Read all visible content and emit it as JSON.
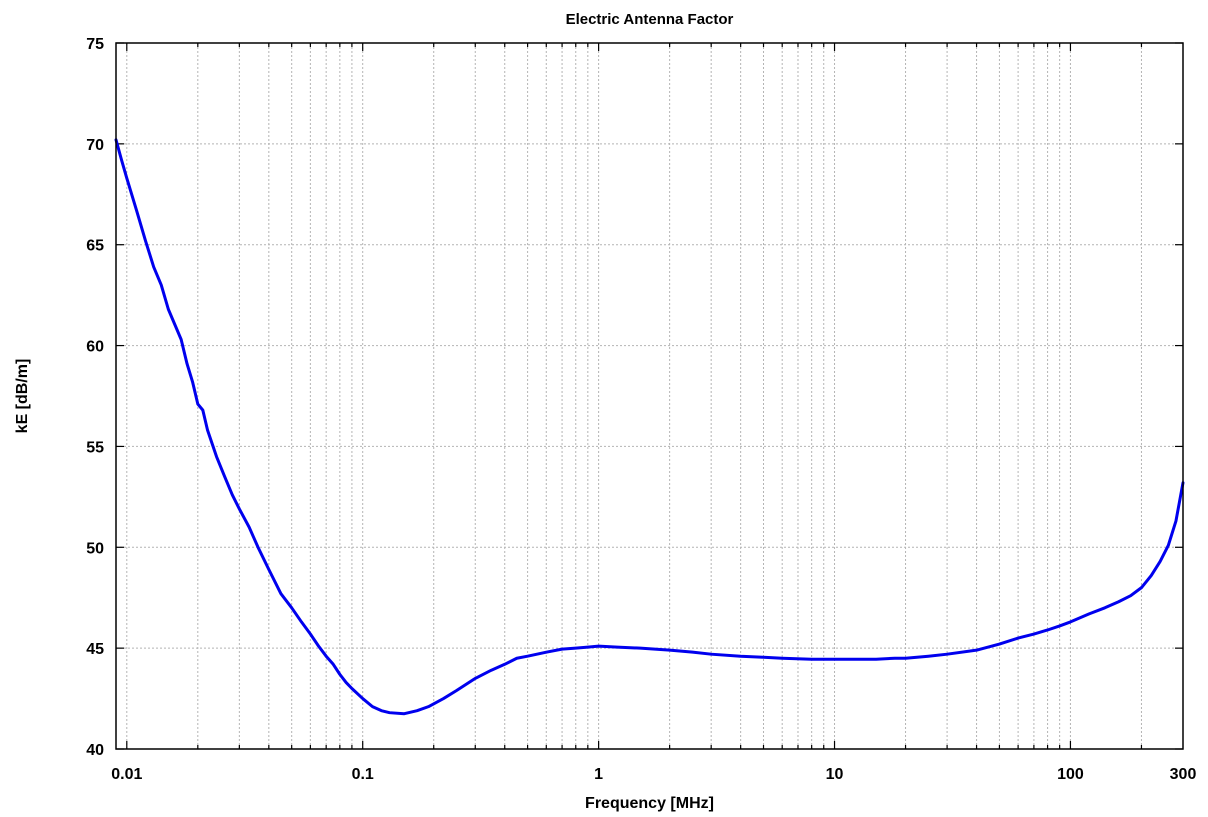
{
  "chart_data": {
    "type": "line",
    "title": "Electric Antenna Factor",
    "xlabel": "Frequency [MHz]",
    "ylabel": "kE [dB/m]",
    "x_scale": "log",
    "xlim": [
      0.009,
      300
    ],
    "ylim": [
      40,
      75
    ],
    "grid": true,
    "x_ticks": [
      {
        "value": 0.01,
        "label": "0.01"
      },
      {
        "value": 0.1,
        "label": "0.1"
      },
      {
        "value": 1,
        "label": "1"
      },
      {
        "value": 10,
        "label": "10"
      },
      {
        "value": 100,
        "label": "100"
      },
      {
        "value": 300,
        "label": "300"
      }
    ],
    "y_ticks": [
      {
        "value": 40,
        "label": "40"
      },
      {
        "value": 45,
        "label": "45"
      },
      {
        "value": 50,
        "label": "50"
      },
      {
        "value": 55,
        "label": "55"
      },
      {
        "value": 60,
        "label": "60"
      },
      {
        "value": 65,
        "label": "65"
      },
      {
        "value": 70,
        "label": "70"
      },
      {
        "value": 75,
        "label": "75"
      }
    ],
    "series": [
      {
        "color": "#0000ee",
        "x": [
          0.009,
          0.0095,
          0.01,
          0.011,
          0.012,
          0.013,
          0.014,
          0.015,
          0.017,
          0.018,
          0.019,
          0.02,
          0.021,
          0.022,
          0.024,
          0.026,
          0.028,
          0.03,
          0.033,
          0.036,
          0.04,
          0.045,
          0.05,
          0.055,
          0.06,
          0.065,
          0.07,
          0.075,
          0.08,
          0.085,
          0.09,
          0.1,
          0.11,
          0.12,
          0.13,
          0.15,
          0.17,
          0.19,
          0.22,
          0.25,
          0.3,
          0.35,
          0.4,
          0.45,
          0.5,
          0.6,
          0.7,
          0.8,
          0.9,
          1,
          1.2,
          1.5,
          2,
          2.5,
          3,
          4,
          5,
          6,
          8,
          10,
          12,
          15,
          18,
          20,
          25,
          30,
          40,
          50,
          60,
          70,
          80,
          90,
          100,
          120,
          140,
          160,
          180,
          200,
          220,
          240,
          260,
          280,
          300
        ],
        "values": [
          70.2,
          69.2,
          68.3,
          66.7,
          65.2,
          63.9,
          63.0,
          61.8,
          60.3,
          59.1,
          58.2,
          57.1,
          56.8,
          55.8,
          54.5,
          53.5,
          52.6,
          51.9,
          51.0,
          50.0,
          48.9,
          47.7,
          47.0,
          46.3,
          45.7,
          45.1,
          44.6,
          44.2,
          43.7,
          43.3,
          43.0,
          42.5,
          42.1,
          41.9,
          41.8,
          41.75,
          41.9,
          42.1,
          42.5,
          42.9,
          43.5,
          43.9,
          44.2,
          44.5,
          44.6,
          44.8,
          44.95,
          45.0,
          45.05,
          45.1,
          45.05,
          45.0,
          44.9,
          44.8,
          44.7,
          44.6,
          44.55,
          44.5,
          44.45,
          44.45,
          44.45,
          44.45,
          44.5,
          44.5,
          44.6,
          44.7,
          44.9,
          45.2,
          45.5,
          45.7,
          45.9,
          46.1,
          46.3,
          46.7,
          47.0,
          47.3,
          47.6,
          48.0,
          48.6,
          49.3,
          50.1,
          51.3,
          53.2
        ]
      }
    ]
  }
}
